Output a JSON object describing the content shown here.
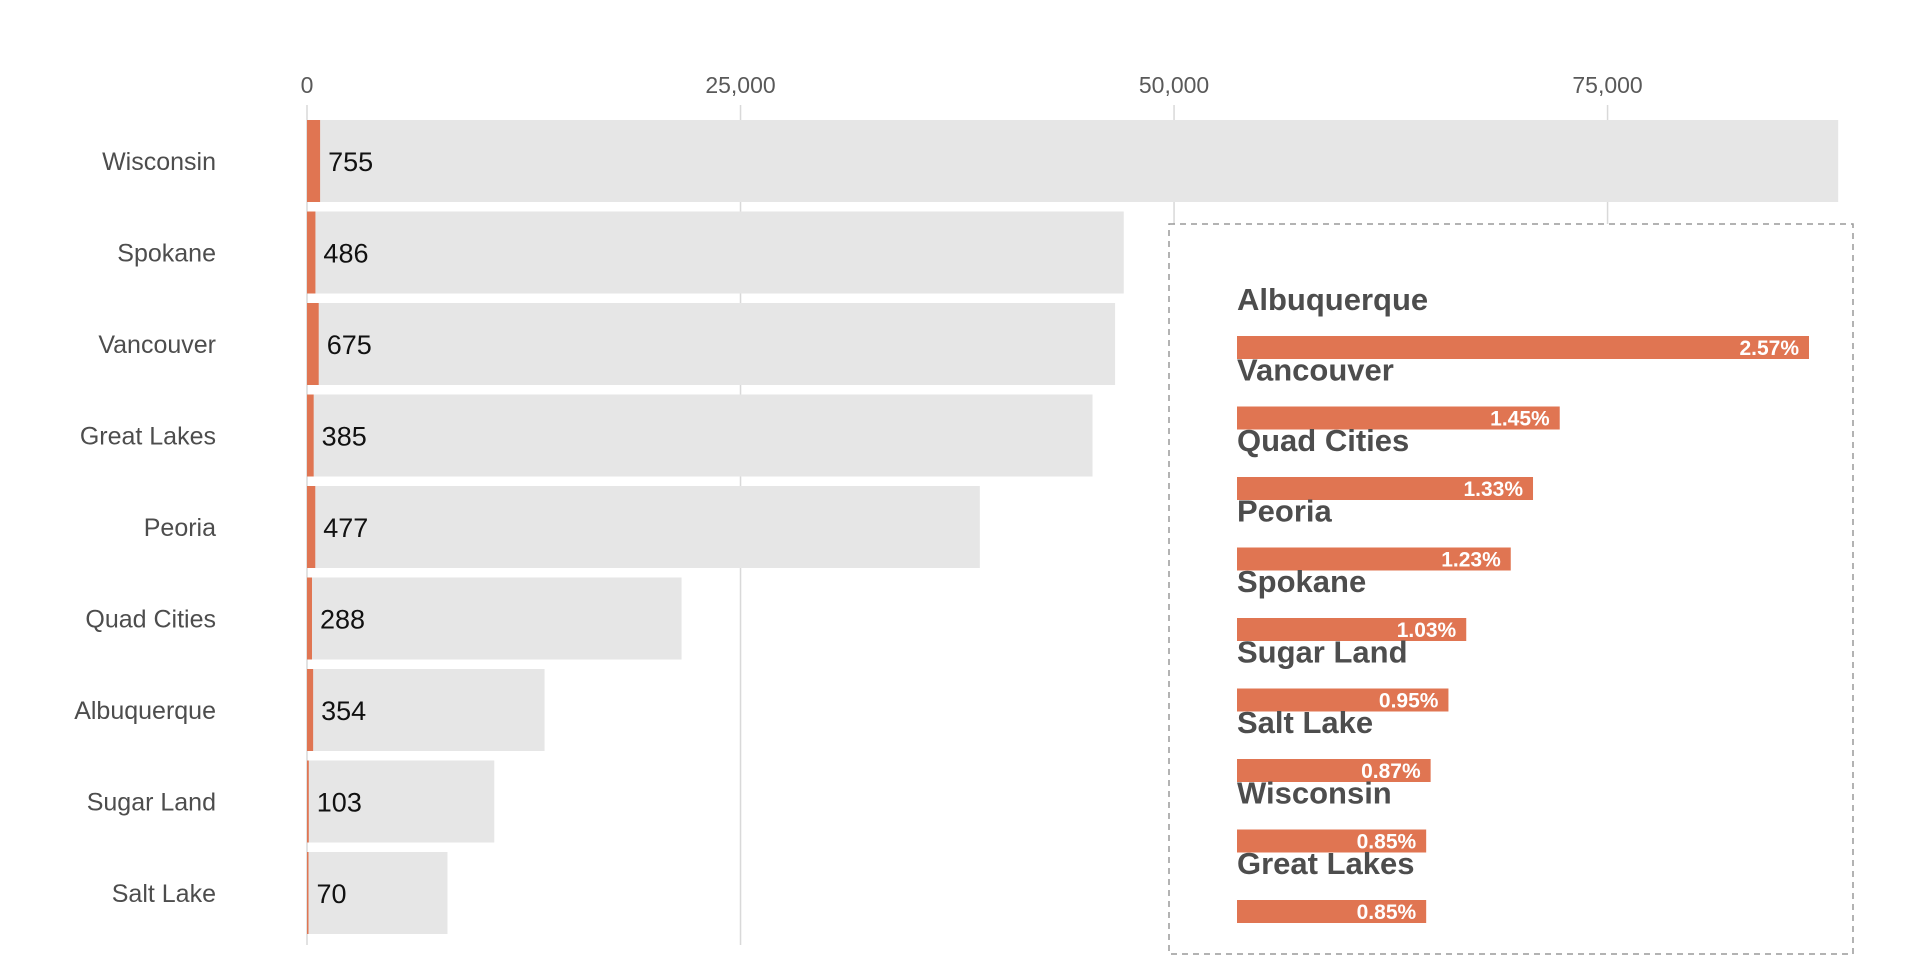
{
  "colors": {
    "total_bar": "#e6e6e6",
    "highlight_bar": "#e07552",
    "gridline": "#d9d9d9",
    "inset_border": "#9a9a9a"
  },
  "chart_data": [
    {
      "type": "bar",
      "orientation": "horizontal",
      "title": "",
      "xlabel": "",
      "ylabel": "",
      "xlim": [
        0,
        88000
      ],
      "x_ticks": [
        0,
        25000,
        50000,
        75000
      ],
      "x_tick_labels": [
        "0",
        "25,000",
        "50,000",
        "75,000"
      ],
      "tick_position": "top",
      "grid": true,
      "categories": [
        "Wisconsin",
        "Spokane",
        "Vancouver",
        "Great Lakes",
        "Peoria",
        "Quad Cities",
        "Albuquerque",
        "Sugar Land",
        "Salt Lake"
      ],
      "series": [
        {
          "values": [
            88300,
            47100,
            46600,
            45300,
            38800,
            21600,
            13700,
            10800,
            8100
          ]
        },
        {
          "values": [
            755,
            486,
            675,
            385,
            477,
            288,
            354,
            103,
            70
          ]
        }
      ],
      "data_labels": [
        "755",
        "486",
        "675",
        "385",
        "477",
        "288",
        "354",
        "103",
        "70"
      ]
    },
    {
      "type": "bar",
      "orientation": "horizontal",
      "title": "",
      "xlim": [
        0,
        2.57
      ],
      "legend": "none",
      "categories": [
        "Albuquerque",
        "Vancouver",
        "Quad Cities",
        "Peoria",
        "Spokane",
        "Sugar Land",
        "Salt Lake",
        "Wisconsin",
        "Great Lakes"
      ],
      "values": [
        2.57,
        1.45,
        1.33,
        1.23,
        1.03,
        0.95,
        0.87,
        0.85,
        0.85
      ],
      "data_labels": [
        "2.57%",
        "1.45%",
        "1.33%",
        "1.23%",
        "1.03%",
        "0.95%",
        "0.87%",
        "0.85%",
        "0.85%"
      ]
    }
  ]
}
